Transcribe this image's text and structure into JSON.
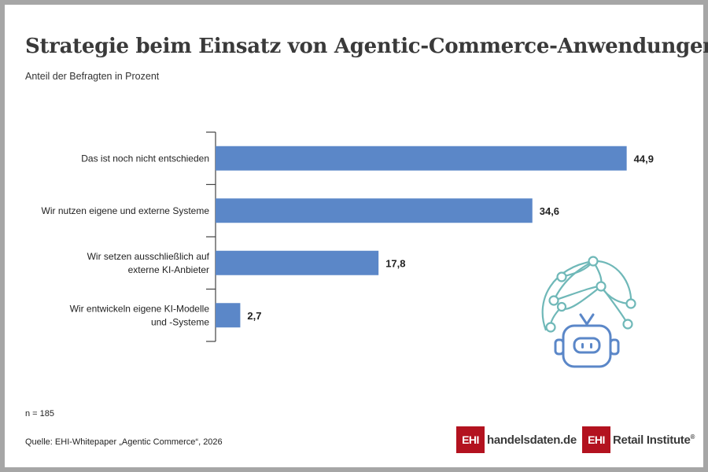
{
  "header": {
    "title": "Strategie beim Einsatz von Agentic-Commerce-Anwendungen",
    "subtitle": "Anteil der Befragten in Prozent"
  },
  "chart_data": {
    "type": "bar",
    "orientation": "horizontal",
    "categories": [
      [
        "Das ist noch nicht entschieden"
      ],
      [
        "Wir nutzen eigene und externe Systeme"
      ],
      [
        "Wir setzen ausschließlich auf",
        "externe KI-Anbieter"
      ],
      [
        "Wir entwickeln eigene KI-Modelle",
        "und -Systeme"
      ]
    ],
    "values": [
      44.9,
      34.6,
      17.8,
      2.7
    ],
    "value_labels": [
      "44,9",
      "34,6",
      "17,8",
      "2,7"
    ],
    "bar_color": "#5b87c8",
    "title": "Strategie beim Einsatz von Agentic-Commerce-Anwendungen",
    "subtitle": "Anteil der Befragten in Prozent",
    "xlim": [
      0,
      50
    ],
    "grid": false,
    "legend": "none"
  },
  "footer": {
    "sample": "n = 185",
    "source": "Quelle: EHI-Whitepaper „Agentic Commerce“, 2026"
  },
  "logos": {
    "box_text": "EHI",
    "handelsdaten": "handelsdaten.de",
    "retail": "Retail Institute",
    "registered": "®",
    "brand_color": "#b3121f"
  },
  "icons": {
    "illustration": "robot-network-icon",
    "robot_color": "#5b87c8",
    "network_color": "#6fb8b8"
  }
}
